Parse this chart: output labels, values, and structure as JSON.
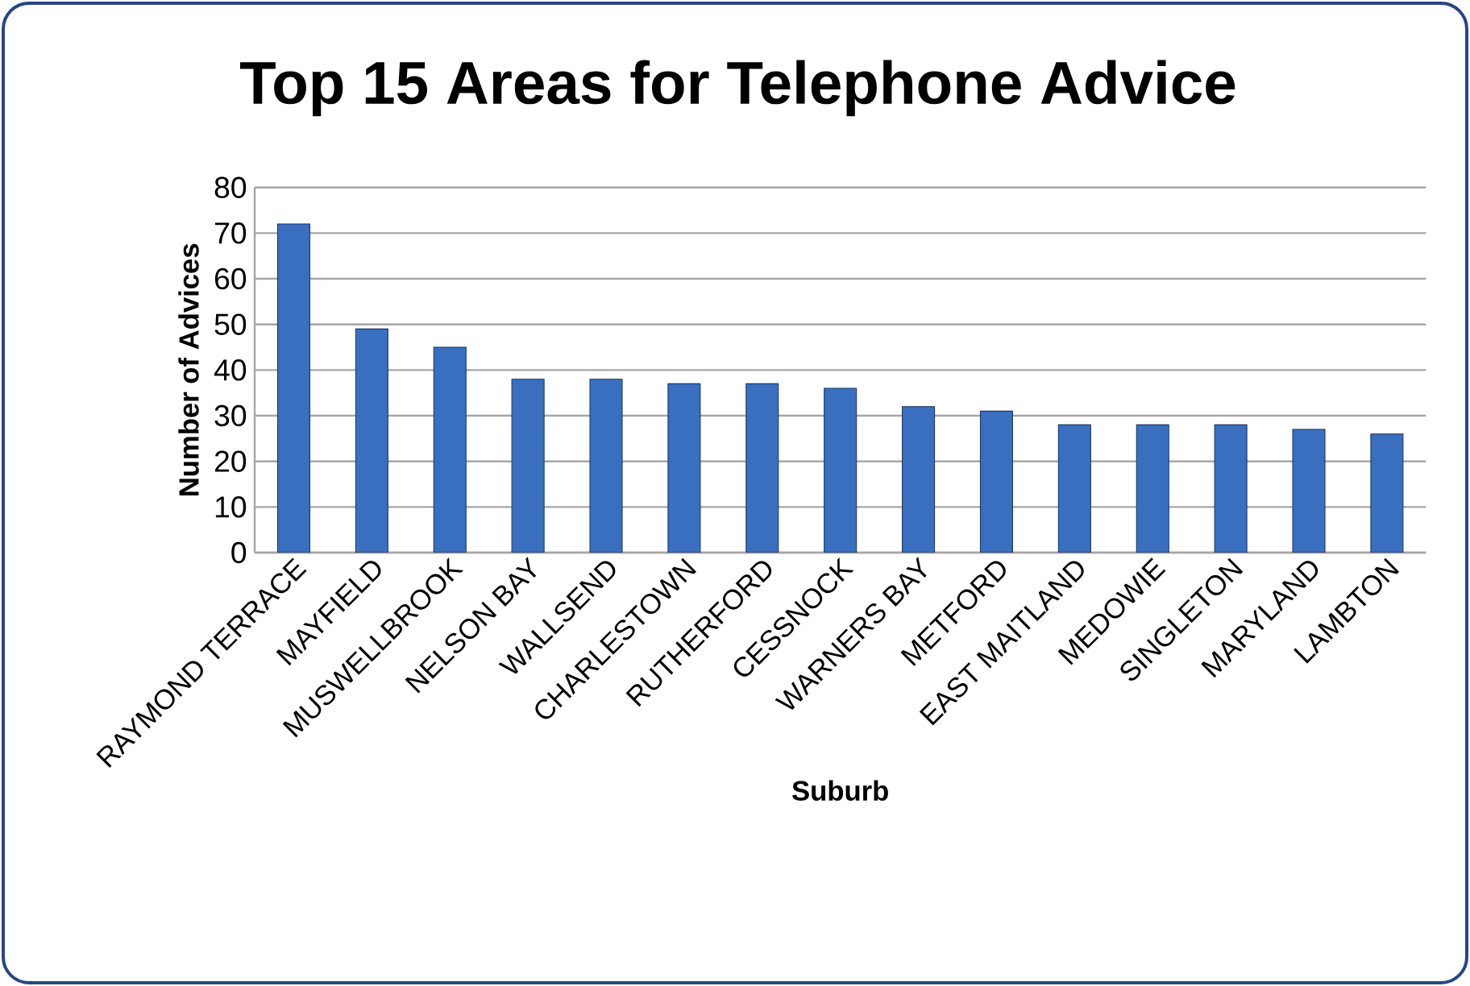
{
  "chart_data": {
    "type": "bar",
    "title": "Top 15 Areas for Telephone Advice",
    "xlabel": "Suburb",
    "ylabel": "Number of Advices",
    "categories": [
      "RAYMOND TERRACE",
      "MAYFIELD",
      "MUSWELLBROOK",
      "NELSON BAY",
      "WALLSEND",
      "CHARLESTOWN",
      "RUTHERFORD",
      "CESSNOCK",
      "WARNERS BAY",
      "METFORD",
      "EAST MAITLAND",
      "MEDOWIE",
      "SINGLETON",
      "MARYLAND",
      "LAMBTON"
    ],
    "values": [
      72,
      49,
      45,
      38,
      38,
      37,
      37,
      36,
      32,
      31,
      28,
      28,
      28,
      27,
      26
    ],
    "color": "#3a6fbf",
    "ylim": [
      0,
      80
    ],
    "yticks": [
      0,
      10,
      20,
      30,
      40,
      50,
      60,
      70,
      80
    ],
    "grid": "y"
  }
}
